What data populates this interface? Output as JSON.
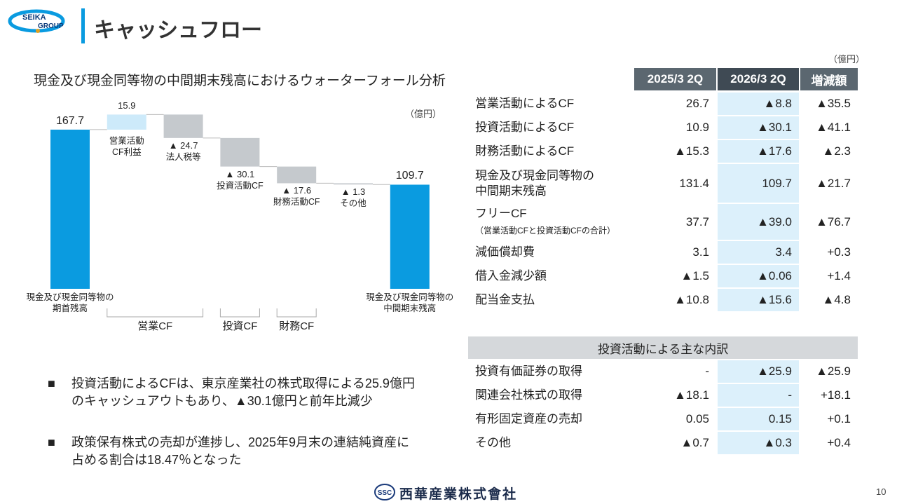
{
  "header": {
    "logo_top": "SEIKA",
    "logo_bottom": "GROUP",
    "title": "キャッシュフロー"
  },
  "chart_data": {
    "type": "waterfall",
    "title": "現金及び現金同等物の中間期末残高におけるウォーターフォール分析",
    "unit": "（億円）",
    "categories": [
      "現金及び現金同等物の\n期首残高",
      "営業活動\nCF利益",
      "法人税等",
      "投資活動CF",
      "財務活動CF",
      "その他",
      "現金及び現金同等物の\n中間期末残高"
    ],
    "values": [
      167.7,
      15.9,
      -24.7,
      -30.1,
      -17.6,
      -1.3,
      109.7
    ],
    "value_labels": [
      "167.7",
      "15.9",
      "▲ 24.7",
      "▲ 30.1",
      "▲ 17.6",
      "▲ 1.3",
      "109.7"
    ],
    "colors": [
      "#0a9be0",
      "#cdeafa",
      "#c5c9cd",
      "#c5c9cd",
      "#c5c9cd",
      "#c5c9cd",
      "#0a9be0"
    ],
    "group_labels": [
      "営業CF",
      "投資CF",
      "財務CF"
    ]
  },
  "bullets": [
    "投資活動によるCFは、東京産業社の株式取得による25.9億円のキャッシュアウトもあり、▲30.1億円と前年比減少",
    "政策保有株式の売却が進捗し、2025年9月末の連結純資産に占める割合は18.47％となった"
  ],
  "table": {
    "unit": "（億円）",
    "columns": [
      "2025/3 2Q",
      "2026/3 2Q",
      "増減額"
    ],
    "rows": [
      {
        "label": "営業活動によるCF",
        "cells": [
          "26.7",
          "▲8.8",
          "▲35.5"
        ]
      },
      {
        "label": "投資活動によるCF",
        "cells": [
          "10.9",
          "▲30.1",
          "▲41.1"
        ]
      },
      {
        "label": "財務活動によるCF",
        "cells": [
          "▲15.3",
          "▲17.6",
          "▲2.3"
        ]
      },
      {
        "label": "現金及び現金同等物の\n中間期末残高",
        "cells": [
          "131.4",
          "109.7",
          "▲21.7"
        ]
      },
      {
        "label": "フリーCF",
        "note": "（営業活動CFと投資活動CFの合計）",
        "cells": [
          "37.7",
          "▲39.0",
          "▲76.7"
        ]
      },
      {
        "label": "減価償却費",
        "cells": [
          "3.1",
          "3.4",
          "+0.3"
        ]
      },
      {
        "label": "借入金減少額",
        "cells": [
          "▲1.5",
          "▲0.06",
          "+1.4"
        ]
      },
      {
        "label": "配当金支払",
        "cells": [
          "▲10.8",
          "▲15.6",
          "▲4.8"
        ]
      }
    ]
  },
  "breakdown": {
    "title": "投資活動による主な内訳",
    "rows": [
      {
        "label": "投資有価証券の取得",
        "cells": [
          "-",
          "▲25.9",
          "▲25.9"
        ]
      },
      {
        "label": "関連会社株式の取得",
        "cells": [
          "▲18.1",
          "-",
          "+18.1"
        ]
      },
      {
        "label": "有形固定資産の売却",
        "cells": [
          "0.05",
          "0.15",
          "+0.1"
        ]
      },
      {
        "label": "その他",
        "cells": [
          "▲0.7",
          "▲0.3",
          "+0.4"
        ]
      }
    ]
  },
  "footer": {
    "logo_mark": "SSC",
    "company": "西華産業株式會社",
    "page": "10"
  }
}
